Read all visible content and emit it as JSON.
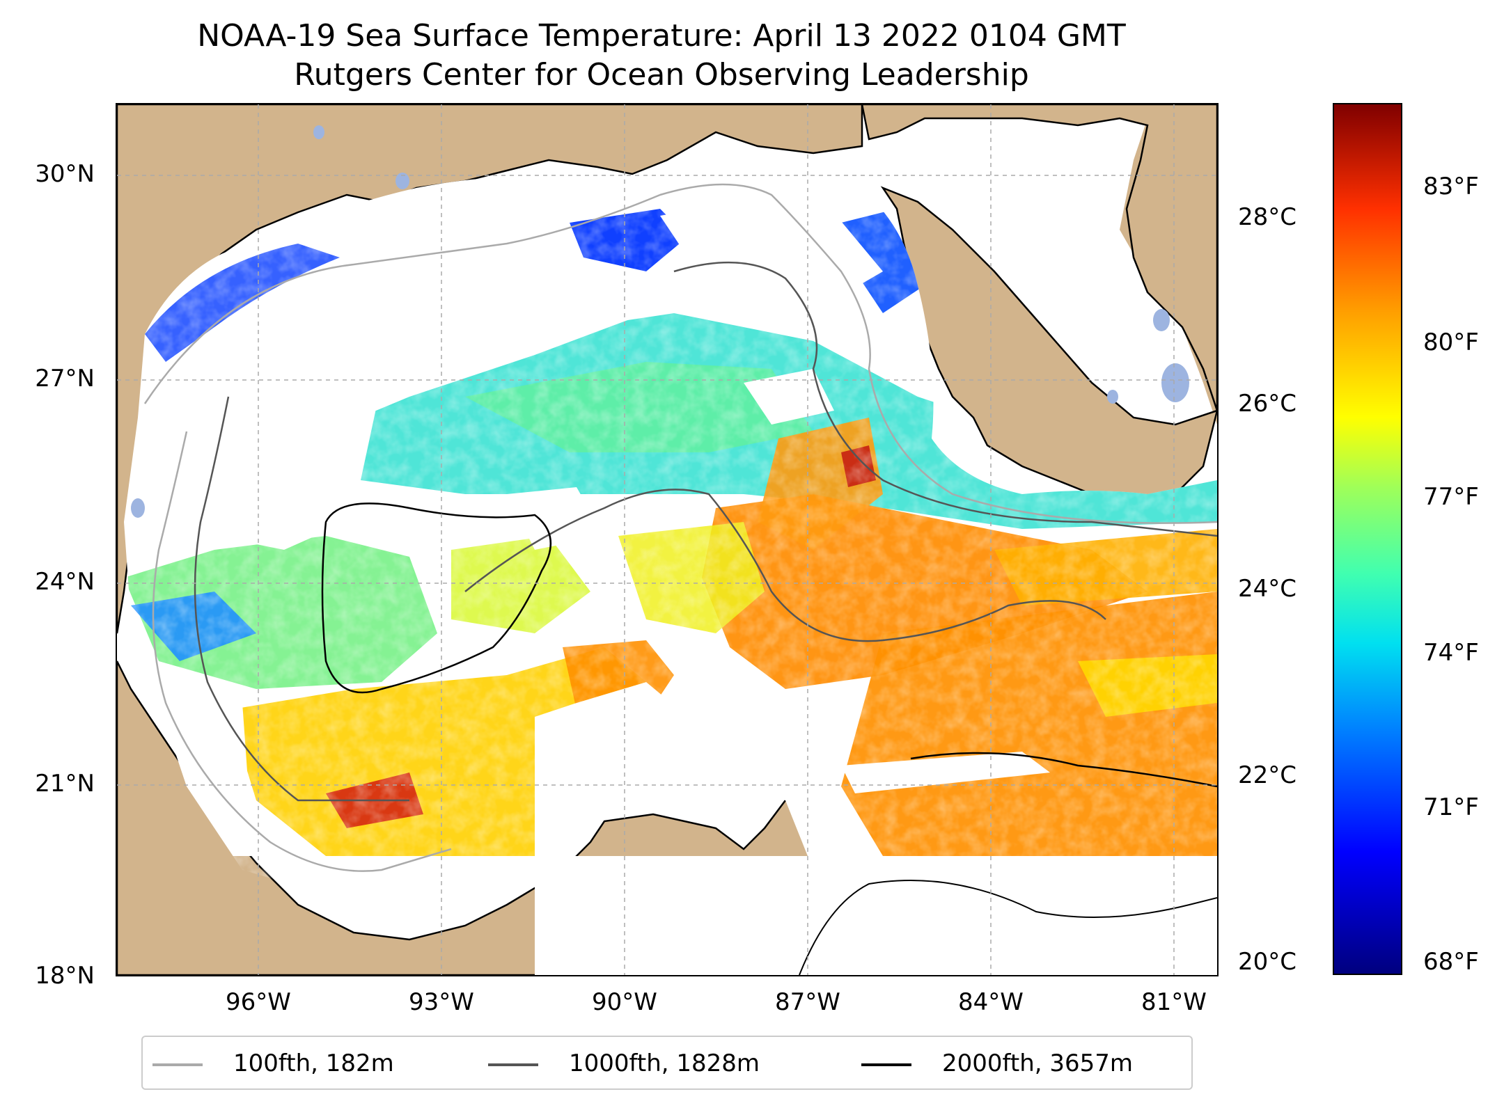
{
  "title": {
    "line1": "NOAA-19 Sea Surface Temperature: April 13 2022 0104 GMT",
    "line2": "Rutgers Center for Ocean Observing Leadership"
  },
  "map": {
    "lat_ticks": [
      "30°N",
      "27°N",
      "24°N",
      "21°N",
      "18°N"
    ],
    "lon_ticks": [
      "96°W",
      "93°W",
      "90°W",
      "87°W",
      "84°W",
      "81°W"
    ],
    "colors": {
      "land": "#d2b48c",
      "no_data": "#ffffff",
      "lakes": "#9db4e0",
      "grid": "#aaaaaa"
    }
  },
  "colorbar": {
    "celsius_labels": [
      "28°C",
      "26°C",
      "24°C",
      "22°C",
      "20°C"
    ],
    "fahrenheit_labels": [
      "83°F",
      "80°F",
      "77°F",
      "74°F",
      "71°F",
      "68°F"
    ],
    "colormap": "jet"
  },
  "legend": {
    "items": [
      {
        "label": "100fth, 182m",
        "color": "#aaaaaa"
      },
      {
        "label": "1000fth, 1828m",
        "color": "#555555"
      },
      {
        "label": "2000fth, 3657m",
        "color": "#000000"
      }
    ]
  }
}
